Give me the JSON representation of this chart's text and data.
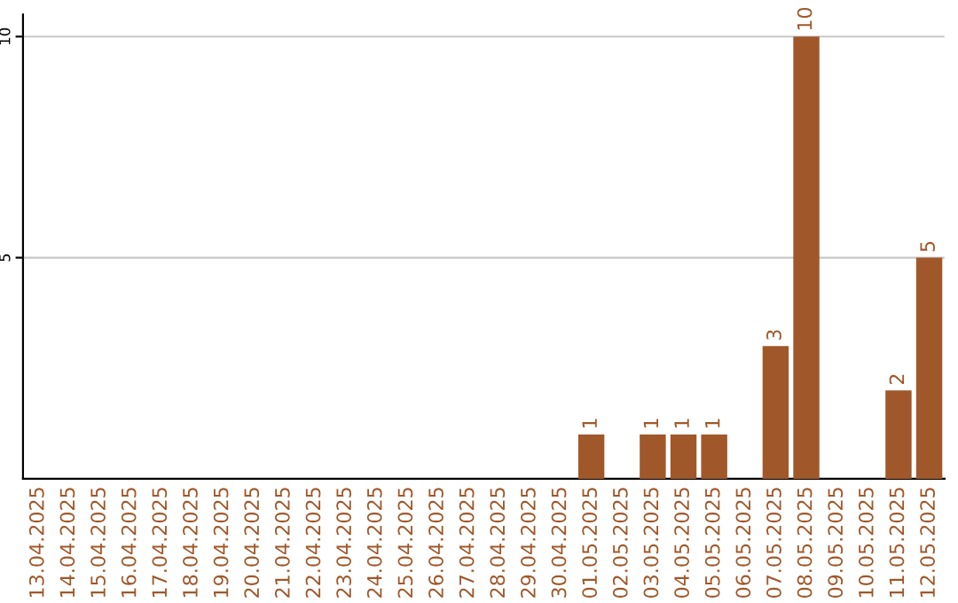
{
  "chart_data": {
    "type": "bar",
    "categories": [
      "13.04.2025",
      "14.04.2025",
      "15.04.2025",
      "16.04.2025",
      "17.04.2025",
      "18.04.2025",
      "19.04.2025",
      "20.04.2025",
      "21.04.2025",
      "22.04.2025",
      "23.04.2025",
      "24.04.2025",
      "25.04.2025",
      "26.04.2025",
      "27.04.2025",
      "28.04.2025",
      "29.04.2025",
      "30.04.2025",
      "01.05.2025",
      "02.05.2025",
      "03.05.2025",
      "04.05.2025",
      "05.05.2025",
      "06.05.2025",
      "07.05.2025",
      "08.05.2025",
      "09.05.2025",
      "10.05.2025",
      "11.05.2025",
      "12.05.2025"
    ],
    "values": [
      0,
      0,
      0,
      0,
      0,
      0,
      0,
      0,
      0,
      0,
      0,
      0,
      0,
      0,
      0,
      0,
      0,
      0,
      1,
      0,
      1,
      1,
      1,
      0,
      3,
      10,
      0,
      0,
      2,
      5
    ],
    "value_labels": [
      null,
      null,
      null,
      null,
      null,
      null,
      null,
      null,
      null,
      null,
      null,
      null,
      null,
      null,
      null,
      null,
      null,
      null,
      "1",
      null,
      "1",
      "1",
      "1",
      null,
      "3",
      "10",
      null,
      null,
      "2",
      "5"
    ],
    "color": "#a0582a",
    "ylim": [
      0,
      10.5
    ],
    "yticks": [
      5,
      10
    ],
    "grid": "y"
  }
}
